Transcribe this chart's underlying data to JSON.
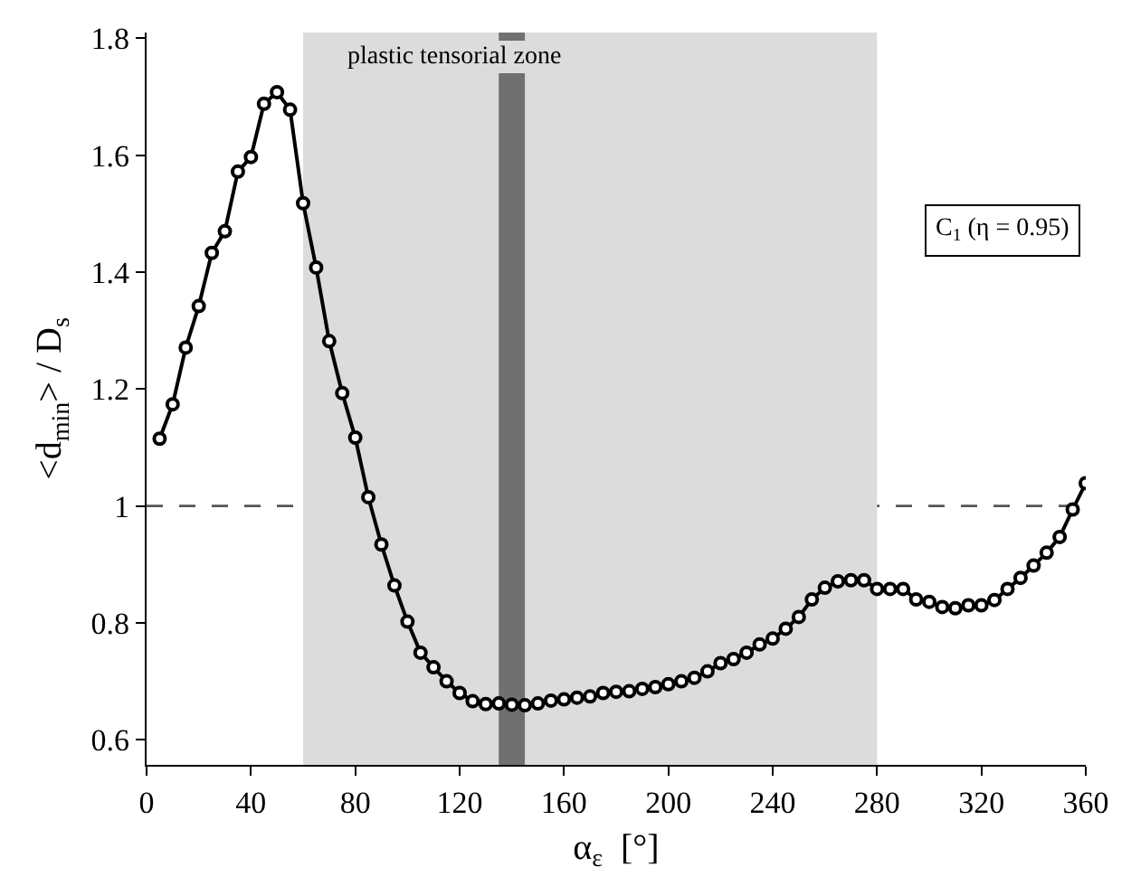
{
  "chart_data": {
    "type": "line",
    "xlabel": "α$_{ε}$  [°]",
    "ylabel": "<d$_{min}$> / D$_{s}$",
    "x": [
      5,
      10,
      15,
      20,
      25,
      30,
      35,
      40,
      45,
      50,
      55,
      60,
      65,
      70,
      75,
      80,
      85,
      90,
      95,
      100,
      105,
      110,
      115,
      120,
      125,
      130,
      135,
      140,
      145,
      150,
      155,
      160,
      165,
      170,
      175,
      180,
      185,
      190,
      195,
      200,
      205,
      210,
      215,
      220,
      225,
      230,
      235,
      240,
      245,
      250,
      255,
      260,
      265,
      270,
      275,
      280,
      285,
      290,
      295,
      300,
      305,
      310,
      315,
      320,
      325,
      330,
      335,
      340,
      345,
      350,
      355,
      360
    ],
    "series": [
      {
        "color": "#000000",
        "values": [
          1.115,
          1.174,
          1.271,
          1.342,
          1.433,
          1.47,
          1.572,
          1.597,
          1.688,
          1.708,
          1.678,
          1.518,
          1.408,
          1.282,
          1.193,
          1.117,
          1.015,
          0.934,
          0.864,
          0.802,
          0.749,
          0.724,
          0.7,
          0.68,
          0.666,
          0.661,
          0.662,
          0.66,
          0.659,
          0.662,
          0.667,
          0.669,
          0.672,
          0.674,
          0.68,
          0.682,
          0.683,
          0.687,
          0.69,
          0.695,
          0.7,
          0.706,
          0.717,
          0.731,
          0.738,
          0.749,
          0.763,
          0.773,
          0.79,
          0.81,
          0.84,
          0.86,
          0.871,
          0.873,
          0.873,
          0.858,
          0.858,
          0.858,
          0.84,
          0.836,
          0.827,
          0.825,
          0.83,
          0.83,
          0.839,
          0.858,
          0.877,
          0.898,
          0.92,
          0.947,
          0.994,
          1.039
        ]
      }
    ],
    "xlim": [
      0,
      360
    ],
    "xticks": [
      0,
      40,
      80,
      120,
      160,
      200,
      240,
      280,
      320,
      360
    ],
    "ylim": [
      0.557,
      1.81
    ],
    "yticks": [
      0.6,
      0.8,
      1,
      1.2,
      1.4,
      1.6,
      1.8
    ],
    "grid": false,
    "legend": false,
    "marker": "circle",
    "line_style": "solid",
    "ref_lines": [
      {
        "axis": "y",
        "value": 1,
        "color": "#555555",
        "line_style": "dashed"
      }
    ],
    "bands": [
      {
        "axis": "x",
        "from": 60,
        "to": 280,
        "label": "plastic tensorial zone",
        "color": "#dcdcdc"
      },
      {
        "axis": "x",
        "from": 135,
        "to": 145,
        "color": "#707070"
      }
    ],
    "annotations": [
      "C$_{1}$ (η = 0.95)"
    ]
  }
}
